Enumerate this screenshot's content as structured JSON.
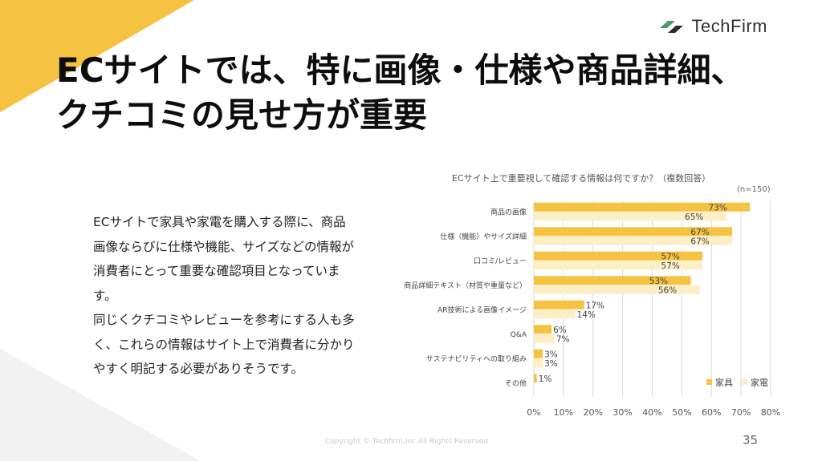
{
  "brand": {
    "name": "TechFirm"
  },
  "slide": {
    "title_line1": "ECサイトでは、特に画像・仕様や商品詳細、",
    "title_line2": "クチコミの見せ方が重要",
    "body_para1": "ECサイトで家具や家電を購入する際に、商品画像ならびに仕様や機能、サイズなどの情報が消費者にとって重要な確認項目となっています。",
    "body_para2": "同じくクチコミやレビューを参考にする人も多く、これらの情報はサイト上で消費者に分かりやすく明記する必要がありそうです。",
    "copyright": "Copyright © Techfirm,Inc All Rights Reserved",
    "page_number": "35"
  },
  "colors": {
    "accent_yellow": "#F5C242",
    "pale_yellow": "#FCEFC6",
    "deco_gray": "#F2F2F2"
  },
  "chart_data": {
    "type": "bar",
    "orientation": "horizontal",
    "title": "ECサイト上で重要視して確認する情報は何ですか？（複数回答）",
    "note": "(n=150)",
    "categories": [
      "商品の画像",
      "仕様（機能）やサイズ詳細",
      "口コミ/レビュー",
      "商品詳細テキスト（材質や重量など）",
      "AR技術による画像イメージ",
      "Q&A",
      "サステナビリティへの取り組み",
      "その他"
    ],
    "series": [
      {
        "name": "家具",
        "color": "#F5C242",
        "values": [
          73,
          67,
          57,
          53,
          17,
          6,
          3,
          1
        ]
      },
      {
        "name": "家電",
        "color": "#FCEFC6",
        "values": [
          65,
          67,
          57,
          56,
          14,
          7,
          3,
          null
        ]
      }
    ],
    "xlim": [
      0,
      80
    ],
    "xticks": [
      0,
      10,
      20,
      30,
      40,
      50,
      60,
      70,
      80
    ],
    "tick_suffix": "%",
    "grid": true,
    "legend": "bottom-right"
  }
}
